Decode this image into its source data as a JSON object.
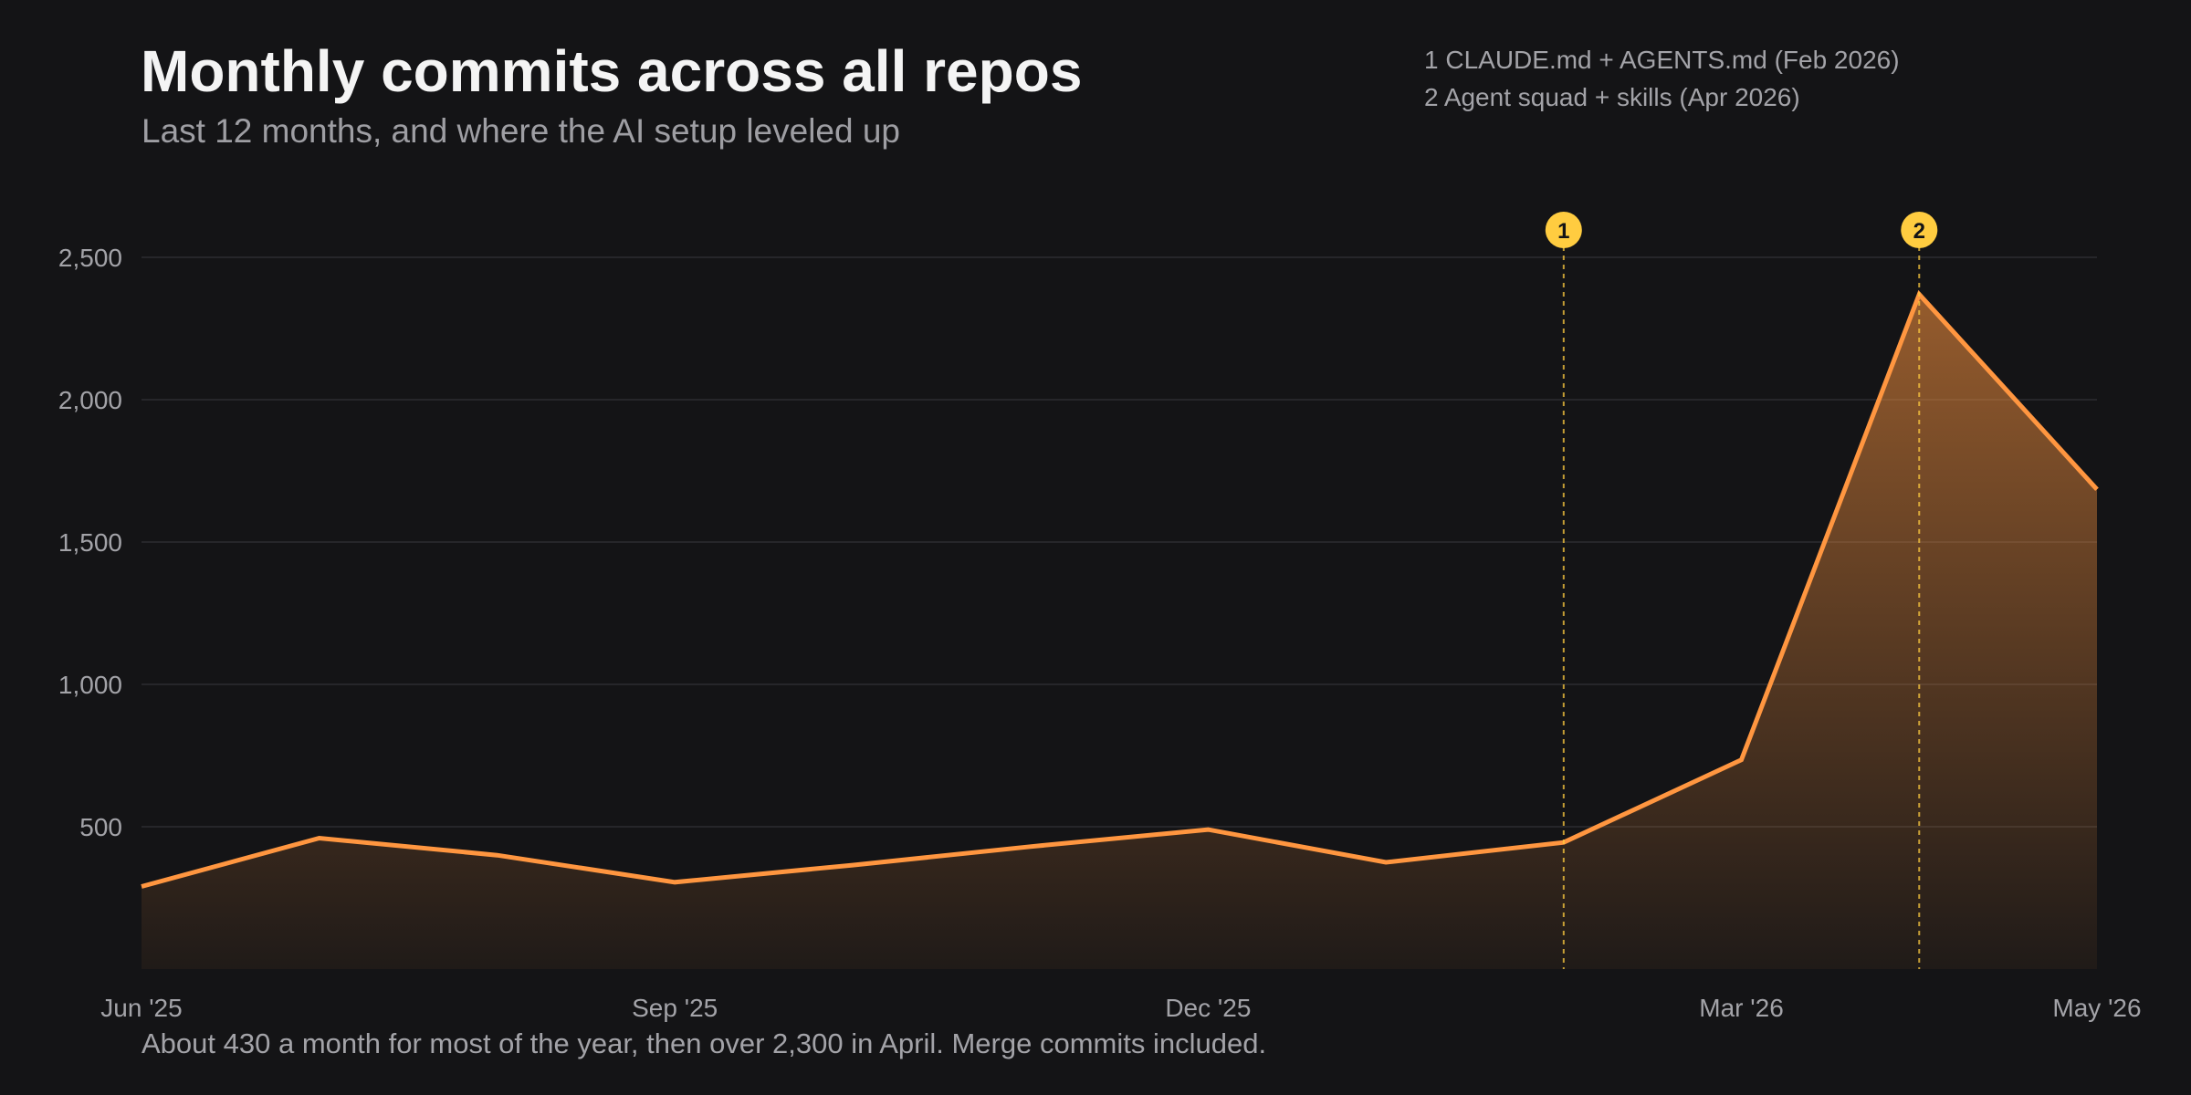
{
  "title": "Monthly commits across all repos",
  "subtitle": "Last 12 months, and where the AI setup leveled up",
  "legend": [
    {
      "number": "1",
      "text": "CLAUDE.md + AGENTS.md (Feb 2026)"
    },
    {
      "number": "2",
      "text": "Agent squad + skills (Apr 2026)"
    }
  ],
  "footnote": "About 430 a month for most of the year, then over 2,300 in April. Merge commits included.",
  "colors": {
    "line": "#ff9640",
    "marker": "#ffcc40",
    "background": "#141416",
    "grid": "#2c2c30"
  },
  "chart_data": {
    "type": "area",
    "x": [
      "Jun 2025",
      "Jul 2025",
      "Aug 2025",
      "Sep 2025",
      "Oct 2025",
      "Nov 2025",
      "Dec 2025",
      "Jan 2026",
      "Feb 2026",
      "Mar 2026",
      "Apr 2026",
      "May 2026"
    ],
    "values": [
      290,
      460,
      400,
      305,
      365,
      430,
      490,
      375,
      445,
      735,
      2370,
      1685
    ],
    "x_tick_labels": [
      {
        "label": "Jun '25",
        "index": 0
      },
      {
        "label": "Sep '25",
        "index": 3
      },
      {
        "label": "Dec '25",
        "index": 6
      },
      {
        "label": "Mar '26",
        "index": 9
      },
      {
        "label": "May '26",
        "index": 11
      }
    ],
    "y_ticks": [
      {
        "value": 500,
        "label": "500"
      },
      {
        "value": 1000,
        "label": "1,000"
      },
      {
        "value": 1500,
        "label": "1,500"
      },
      {
        "value": 2000,
        "label": "2,000"
      },
      {
        "value": 2500,
        "label": "2,500"
      }
    ],
    "ylim": [
      0,
      2500
    ],
    "grid": true,
    "annotations": [
      {
        "number": "1",
        "x_index": 8
      },
      {
        "number": "2",
        "x_index": 10
      }
    ]
  }
}
